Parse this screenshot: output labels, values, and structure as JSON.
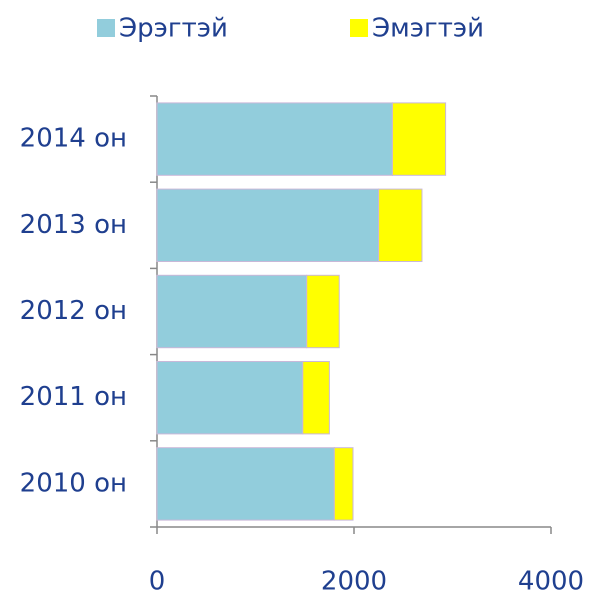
{
  "chart_data": {
    "type": "stacked-barh",
    "categories": [
      "2010 он",
      "2011 он",
      "2012 он",
      "2013 он",
      "2014 он"
    ],
    "series": [
      {
        "name": "Эрэгтэй",
        "color": "#92cddc",
        "values": [
          1800,
          1480,
          1520,
          2250,
          2390
        ]
      },
      {
        "name": "Эмэгтэй",
        "color": "#ffff00",
        "values": [
          190,
          270,
          330,
          440,
          540
        ]
      }
    ],
    "xlim": [
      0,
      4000
    ],
    "xticks": [
      0,
      2000,
      4000
    ],
    "legend": "top"
  }
}
